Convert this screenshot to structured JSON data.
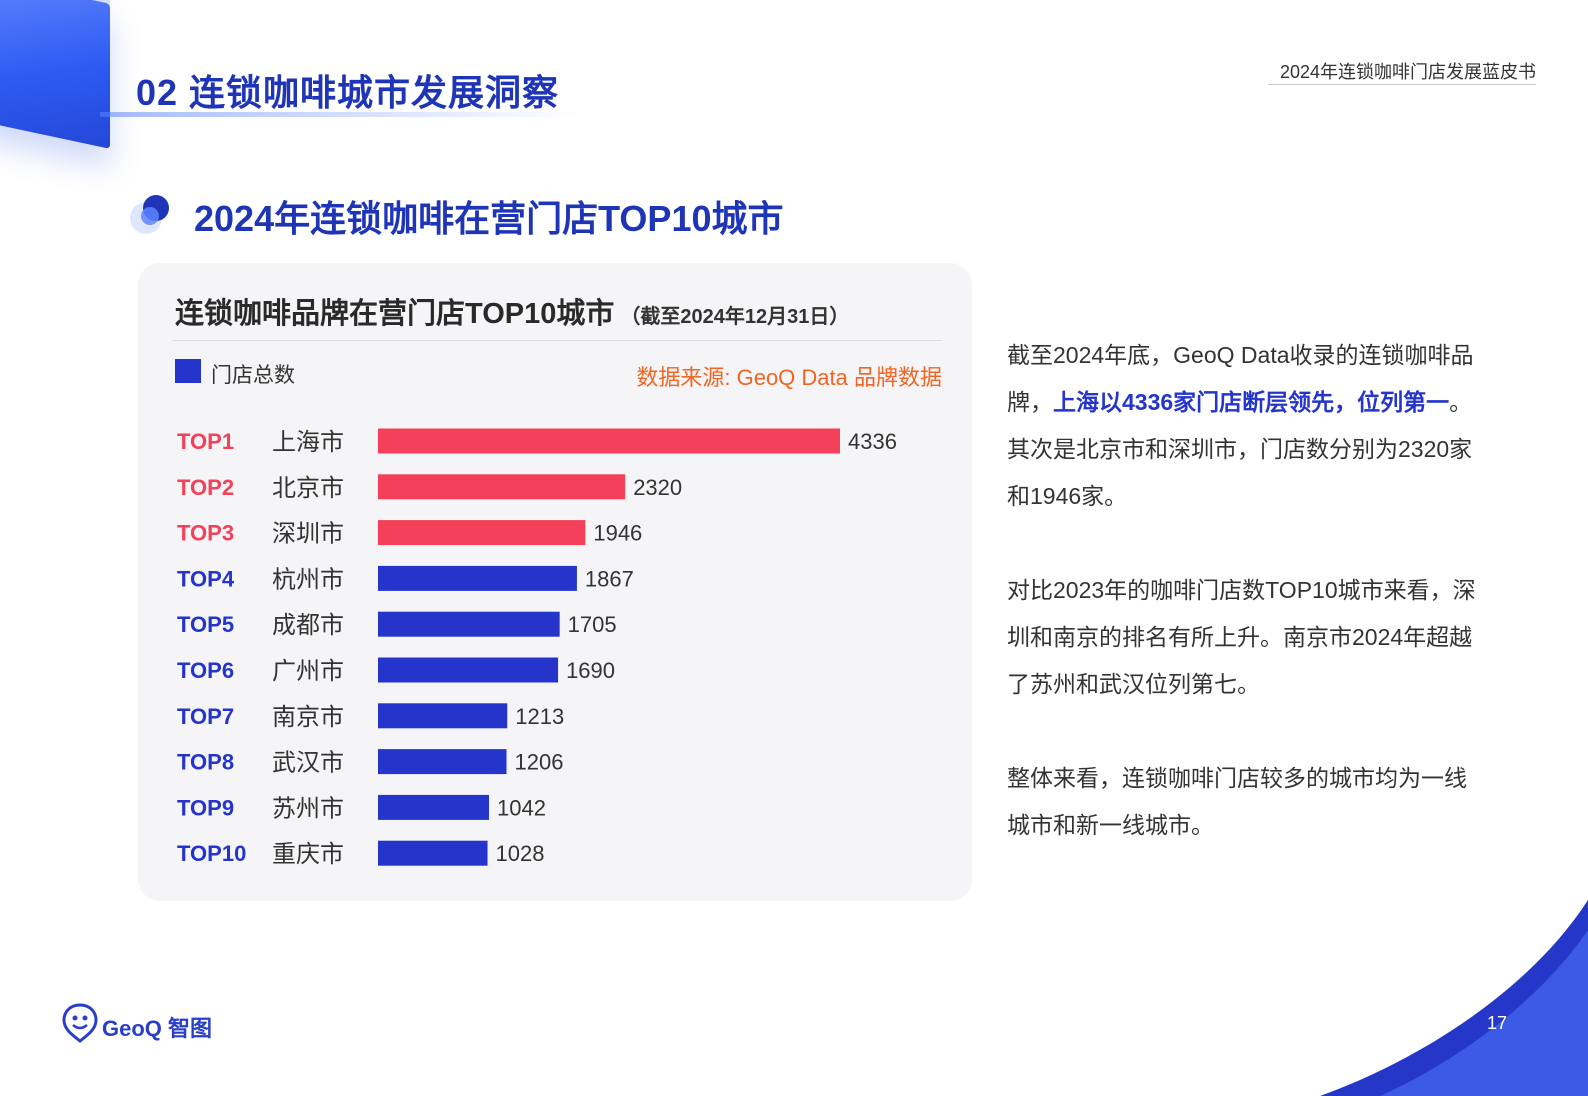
{
  "header": {
    "section_title": "02 连锁咖啡城市发展洞察",
    "doc_title": "2024年连锁咖啡门店发展蓝皮书"
  },
  "subheading": "2024年连锁咖啡在营门店TOP10城市",
  "chart_card": {
    "legend_label": "门店总数",
    "source": "数据来源: GeoQ Data 品牌数据"
  },
  "chart_data": {
    "type": "bar",
    "orientation": "horizontal",
    "title": "连锁咖啡品牌在营门店TOP10城市",
    "subtitle": "（截至2024年12月31日）",
    "ranks": [
      "TOP1",
      "TOP2",
      "TOP3",
      "TOP4",
      "TOP5",
      "TOP6",
      "TOP7",
      "TOP8",
      "TOP9",
      "TOP10"
    ],
    "categories": [
      "上海市",
      "北京市",
      "深圳市",
      "杭州市",
      "成都市",
      "广州市",
      "南京市",
      "武汉市",
      "苏州市",
      "重庆市"
    ],
    "series": [
      {
        "name": "门店总数",
        "values": [
          4336,
          2320,
          1946,
          1867,
          1705,
          1690,
          1213,
          1206,
          1042,
          1028
        ]
      }
    ],
    "highlight_top_n": 3,
    "colors": {
      "highlight": "#f5405a",
      "default": "#2535cc"
    },
    "xlim": [
      0,
      4336
    ],
    "grid": false,
    "legend_position": "top-left"
  },
  "body_text": {
    "p1_before": "截至2024年底，GeoQ Data收录的连锁咖啡品牌，",
    "p1_highlight": "上海以4336家门店断层领先，位列第一",
    "p1_after": "。其次是北京市和深圳市，门店数分别为2320家和1946家。",
    "p2": "对比2023年的咖啡门店数TOP10城市来看，深圳和南京的排名有所上升。南京市2024年超越了苏州和武汉位列第七。",
    "p3": "整体来看，连锁咖啡门店较多的城市均为一线城市和新一线城市。"
  },
  "footer": {
    "logo_text": "GeoQ 智图",
    "page_number": "17"
  },
  "colors": {
    "accent_blue": "#1f35b8",
    "bar_blue": "#2535cc",
    "bar_red": "#f5405a",
    "source_orange": "#f26522"
  }
}
